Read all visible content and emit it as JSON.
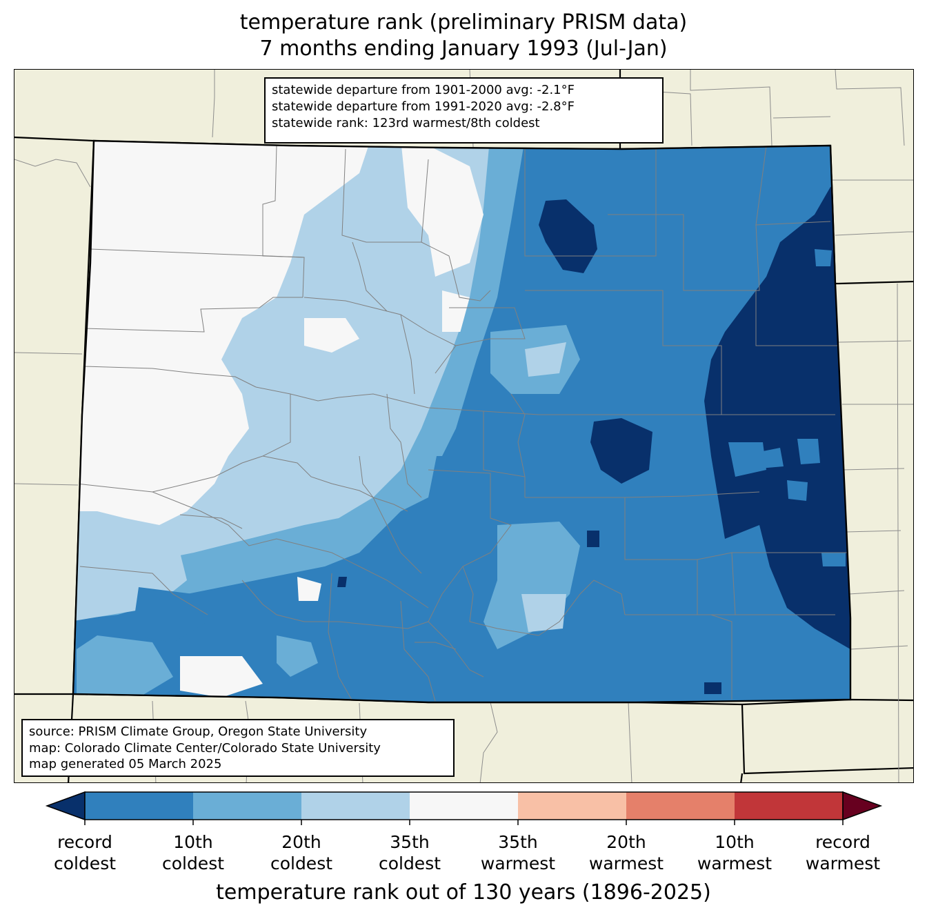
{
  "title": {
    "line1": "temperature rank (preliminary PRISM data)",
    "line2": "7 months ending January 1993 (Jul-Jan)"
  },
  "stats": {
    "line1": "statewide departure from 1901-2000 avg: -2.1°F",
    "line2": "statewide departure from 1991-2020 avg: -2.8°F",
    "line3": "statewide rank: 123rd warmest/8th coldest"
  },
  "source": {
    "line1": "source: PRISM Climate Group, Oregon State University",
    "line2": "map: Colorado Climate Center/Colorado State University",
    "line3": "map generated 05 March 2025"
  },
  "colorbar": {
    "caption": "temperature rank out of 130 years (1896-2025)",
    "under_color": "#08306b",
    "over_color": "#67001f",
    "bins": [
      {
        "color": "#3080bd"
      },
      {
        "color": "#6aaed6"
      },
      {
        "color": "#b0d2e8"
      },
      {
        "color": "#f7f7f7"
      },
      {
        "color": "#f8c0a6"
      },
      {
        "color": "#e5806a"
      },
      {
        "color": "#c13639"
      }
    ],
    "ticks": [
      {
        "line1": "record",
        "line2": "coldest"
      },
      {
        "line1": "10th",
        "line2": "coldest"
      },
      {
        "line1": "20th",
        "line2": "coldest"
      },
      {
        "line1": "35th",
        "line2": "coldest"
      },
      {
        "line1": "35th",
        "line2": "warmest"
      },
      {
        "line1": "20th",
        "line2": "warmest"
      },
      {
        "line1": "10th",
        "line2": "warmest"
      },
      {
        "line1": "record",
        "line2": "warmest"
      }
    ]
  },
  "map": {
    "land_color": "#f0efdc",
    "county_line_color": "#808080",
    "state_line_color": "#000000"
  }
}
